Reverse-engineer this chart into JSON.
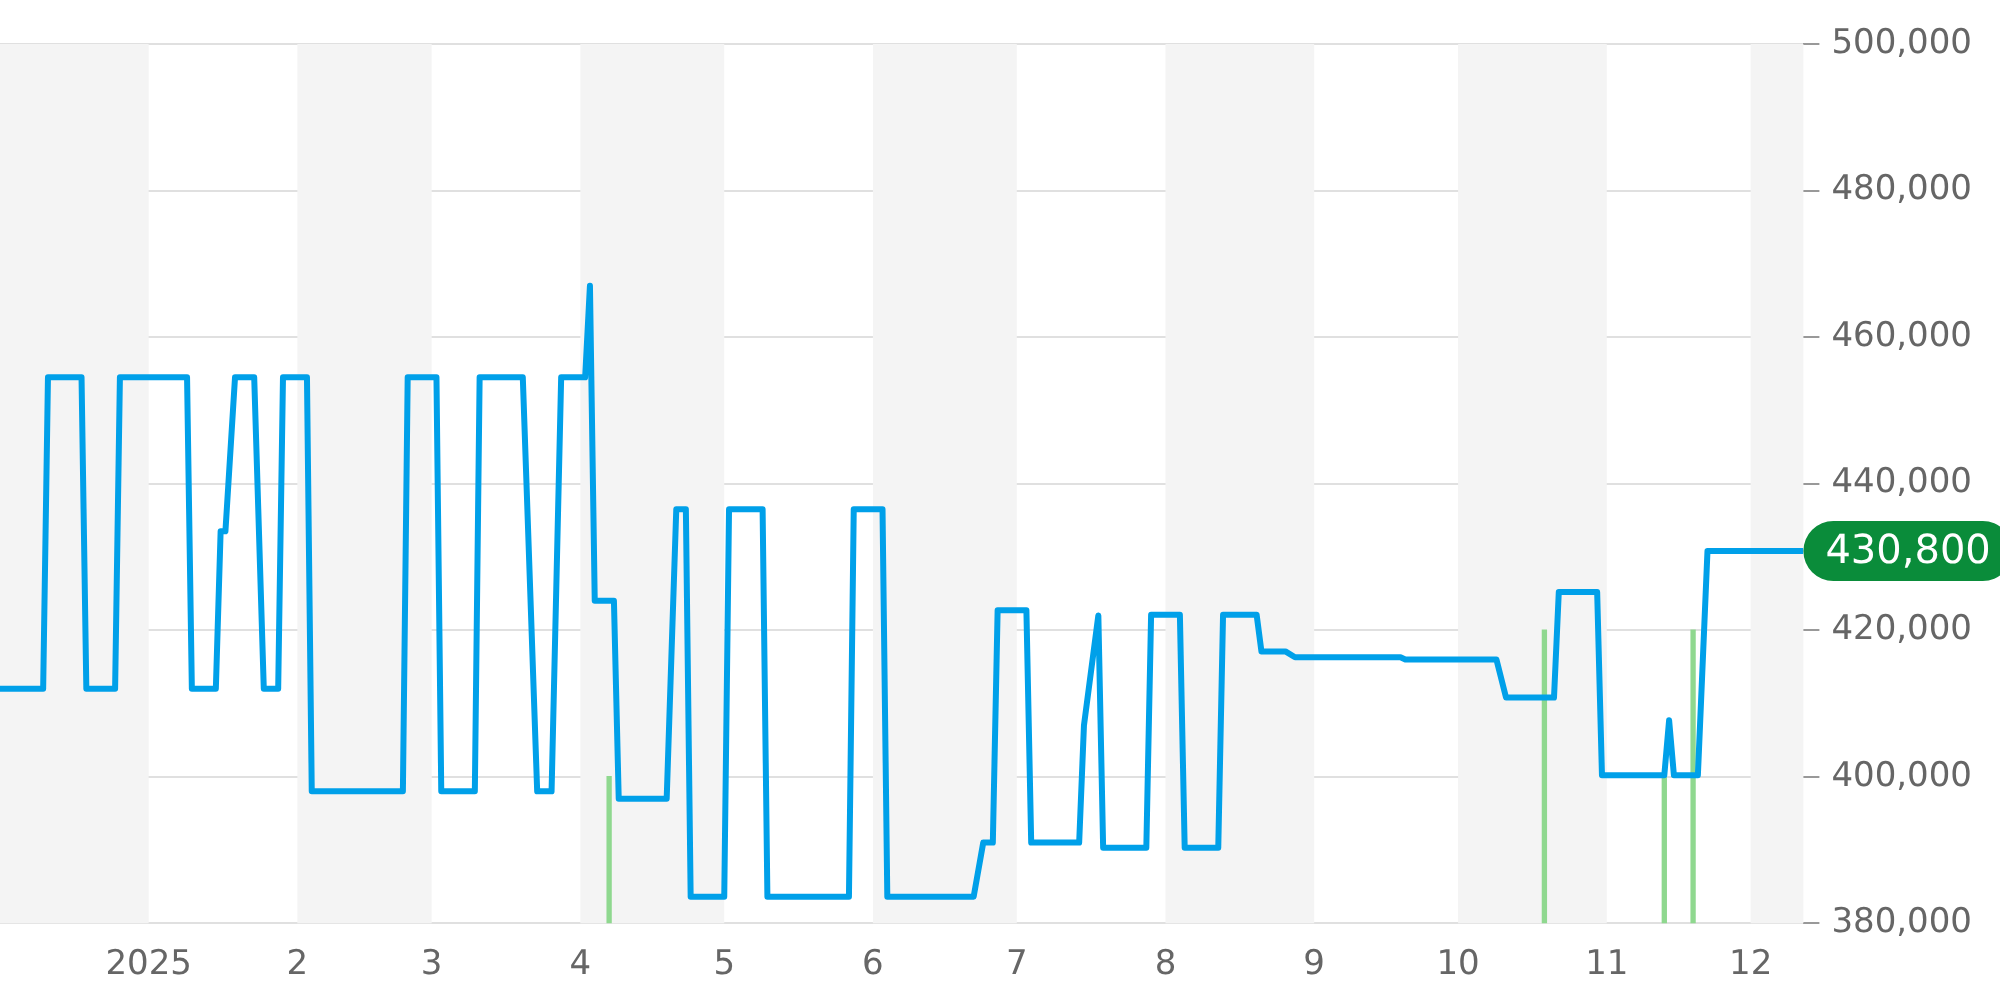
{
  "chart_data": {
    "type": "line",
    "xlim": [
      "2024-12-01",
      "2025-12-12"
    ],
    "xticks": [
      {
        "value": "2025-01-01",
        "label": "2025"
      },
      {
        "value": "2025-02-01",
        "label": "2"
      },
      {
        "value": "2025-03-01",
        "label": "3"
      },
      {
        "value": "2025-04-01",
        "label": "4"
      },
      {
        "value": "2025-05-01",
        "label": "5"
      },
      {
        "value": "2025-06-01",
        "label": "6"
      },
      {
        "value": "2025-07-01",
        "label": "7"
      },
      {
        "value": "2025-08-01",
        "label": "8"
      },
      {
        "value": "2025-09-01",
        "label": "9"
      },
      {
        "value": "2025-10-01",
        "label": "10"
      },
      {
        "value": "2025-11-01",
        "label": "11"
      },
      {
        "value": "2025-12-01",
        "label": "12"
      }
    ],
    "ylim": [
      380000,
      500000
    ],
    "yticks": [
      {
        "value": 380000,
        "label": "380,000"
      },
      {
        "value": 400000,
        "label": "400,000"
      },
      {
        "value": 420000,
        "label": "420,000"
      },
      {
        "value": 440000,
        "label": "440,000"
      },
      {
        "value": 460000,
        "label": "460,000"
      },
      {
        "value": 480000,
        "label": "480,000"
      },
      {
        "value": 500000,
        "label": "500,000"
      }
    ],
    "grid": "y",
    "legend": false,
    "marker": "none",
    "series": [
      {
        "color": "#00a0e9",
        "x": [
          "2024-12-01",
          "2024-12-10",
          "2024-12-11",
          "2024-12-18",
          "2024-12-19",
          "2024-12-25",
          "2024-12-26",
          "2025-01-09",
          "2025-01-10",
          "2025-01-15",
          "2025-01-16",
          "2025-01-17",
          "2025-01-19",
          "2025-01-23",
          "2025-01-25",
          "2025-01-28",
          "2025-01-29",
          "2025-02-03",
          "2025-02-04",
          "2025-02-23",
          "2025-02-24",
          "2025-03-02",
          "2025-03-03",
          "2025-03-10",
          "2025-03-11",
          "2025-03-20",
          "2025-03-23",
          "2025-03-26",
          "2025-03-28",
          "2025-04-02",
          "2025-04-03",
          "2025-04-04",
          "2025-04-08",
          "2025-04-09",
          "2025-04-19",
          "2025-04-21",
          "2025-04-23",
          "2025-04-24",
          "2025-05-01",
          "2025-05-02",
          "2025-05-09",
          "2025-05-10",
          "2025-05-27",
          "2025-05-28",
          "2025-06-03",
          "2025-06-04",
          "2025-06-22",
          "2025-06-24",
          "2025-06-26",
          "2025-06-27",
          "2025-07-03",
          "2025-07-04",
          "2025-07-14",
          "2025-07-15",
          "2025-07-18",
          "2025-07-19",
          "2025-07-28",
          "2025-07-29",
          "2025-08-04",
          "2025-08-05",
          "2025-08-12",
          "2025-08-13",
          "2025-08-20",
          "2025-08-21",
          "2025-08-26",
          "2025-08-28",
          "2025-09-19",
          "2025-09-20",
          "2025-10-09",
          "2025-10-11",
          "2025-10-21",
          "2025-10-22",
          "2025-10-30",
          "2025-10-31",
          "2025-11-13",
          "2025-11-14",
          "2025-11-15",
          "2025-11-20",
          "2025-11-22",
          "2025-12-12"
        ],
        "values": [
          412000,
          412000,
          454500,
          454500,
          412000,
          412000,
          454500,
          454500,
          412000,
          412000,
          433500,
          433500,
          454500,
          454500,
          412000,
          412000,
          454500,
          454500,
          398000,
          398000,
          454500,
          454500,
          398000,
          398000,
          454500,
          454500,
          398000,
          398000,
          454500,
          454500,
          467000,
          424000,
          424000,
          397000,
          397000,
          436500,
          436500,
          383600,
          383600,
          436500,
          436500,
          383600,
          383600,
          436500,
          436500,
          383600,
          383600,
          391000,
          391000,
          422700,
          422700,
          391000,
          391000,
          407000,
          422000,
          390300,
          390300,
          422100,
          422100,
          390300,
          390300,
          422100,
          422100,
          417100,
          417100,
          416300,
          416300,
          416000,
          416000,
          410800,
          410800,
          425200,
          425200,
          400200,
          400200,
          407700,
          400200,
          400200,
          430800,
          430800
        ]
      },
      {
        "type": "bar",
        "color": "#8fd88f",
        "x": [
          "2025-04-07",
          "2025-10-19",
          "2025-11-13",
          "2025-11-19"
        ],
        "values": [
          400000,
          420000,
          400000,
          420000
        ]
      }
    ],
    "bands": [
      {
        "axis": "x",
        "from": "2024-12-01",
        "to": "2025-01-01",
        "color": "#f4f4f4"
      },
      {
        "axis": "x",
        "from": "2025-02-01",
        "to": "2025-03-01",
        "color": "#f4f4f4"
      },
      {
        "axis": "x",
        "from": "2025-04-01",
        "to": "2025-05-01",
        "color": "#f4f4f4"
      },
      {
        "axis": "x",
        "from": "2025-06-01",
        "to": "2025-07-01",
        "color": "#f4f4f4"
      },
      {
        "axis": "x",
        "from": "2025-08-01",
        "to": "2025-09-01",
        "color": "#f4f4f4"
      },
      {
        "axis": "x",
        "from": "2025-10-01",
        "to": "2025-11-01",
        "color": "#f4f4f4"
      },
      {
        "axis": "x",
        "from": "2025-12-01",
        "to": "2025-12-12",
        "color": "#f4f4f4"
      }
    ],
    "annotations": [
      {
        "text": "430,800",
        "x": "2025-12-12",
        "y": 430800
      }
    ]
  }
}
